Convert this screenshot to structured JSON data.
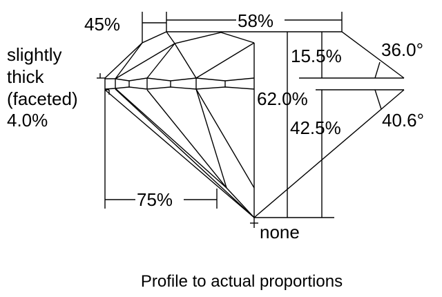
{
  "labels": {
    "crown_height_percent": "45%",
    "table_percent": "58%",
    "girdle_line1": "slightly",
    "girdle_line2": "thick",
    "girdle_line3": "(faceted)",
    "girdle_percent": "4.0%",
    "crown_depth": "15.5%",
    "crown_angle": "36.0°",
    "total_depth": "62.0%",
    "pavilion_depth": "42.5%",
    "pavilion_angle": "40.6°",
    "lower_half_percent": "75%",
    "culet": "none"
  },
  "caption": "Profile to actual proportions"
}
